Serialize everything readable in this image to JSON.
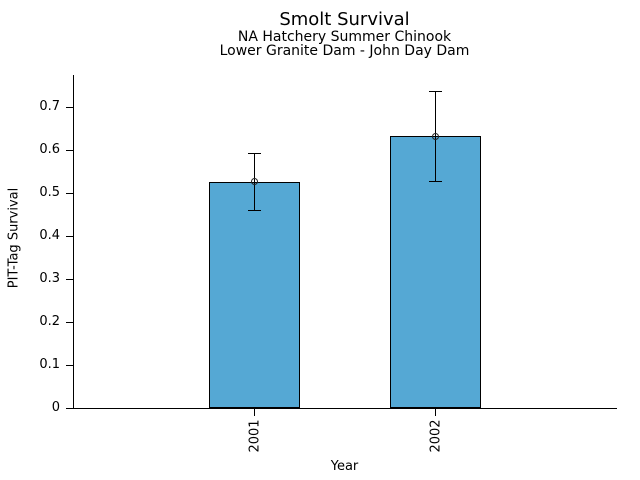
{
  "chart_data": {
    "type": "bar",
    "title": "Smolt Survival",
    "subtitle1": "NA Hatchery Summer Chinook",
    "subtitle2": "Lower Granite Dam - John Day Dam",
    "xlabel": "Year",
    "ylabel": "PIT-Tag Survival",
    "categories": [
      "2001",
      "2002"
    ],
    "values": [
      0.527,
      0.633
    ],
    "error_low": [
      0.459,
      0.526
    ],
    "error_high": [
      0.592,
      0.737
    ],
    "ylim": [
      0,
      0.775
    ],
    "yticks": [
      0,
      0.1,
      0.2,
      0.3,
      0.4,
      0.5,
      0.6,
      0.7
    ],
    "ytick_labels": [
      "0",
      "0.1",
      "0.2",
      "0.3",
      "0.4",
      "0.5",
      "0.6",
      "0.7"
    ],
    "grid": false,
    "legend": "none",
    "bar_color": "#55A8D4",
    "bar_edge_color": "#000000",
    "axis_color": "#000000",
    "text_color": "#000000"
  }
}
